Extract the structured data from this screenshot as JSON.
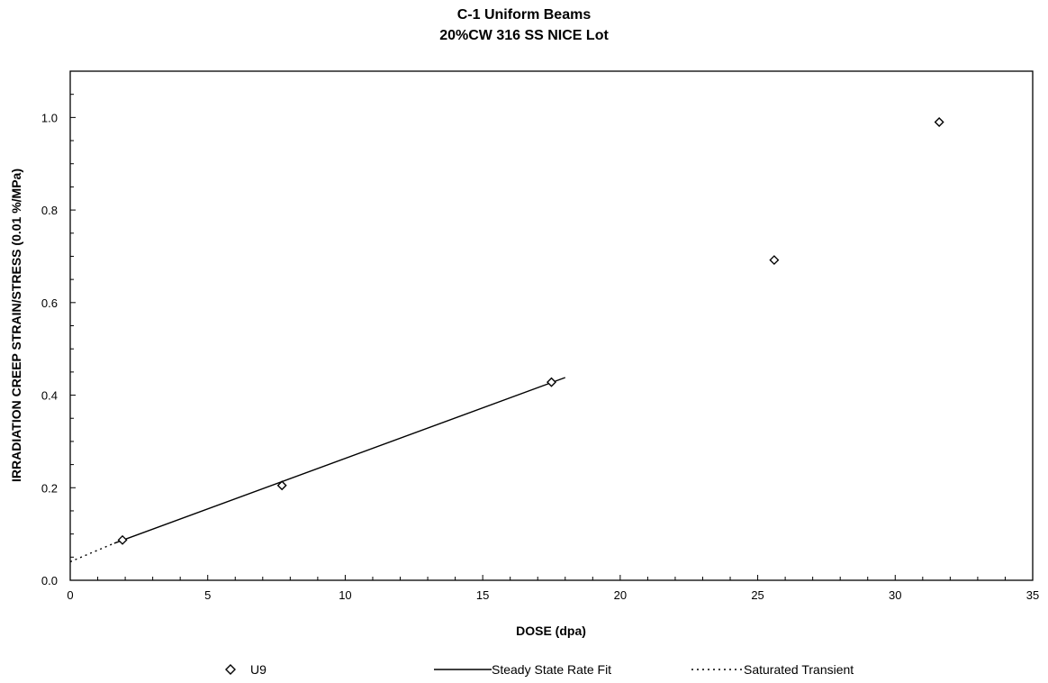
{
  "chart_data": {
    "type": "scatter",
    "title": "C-1 Uniform Beams",
    "subtitle": "20%CW 316 SS NICE Lot",
    "xlabel": "DOSE (dpa)",
    "ylabel": "IRRADIATION CREEP STRAIN/STRESS (0.01 %/MPa)",
    "xlim": [
      0,
      35
    ],
    "ylim": [
      0,
      1.1
    ],
    "xticks": [
      0,
      5,
      10,
      15,
      20,
      25,
      30,
      35
    ],
    "xtick_labels": [
      "0",
      "5",
      "10",
      "15",
      "20",
      "25",
      "30",
      "35"
    ],
    "yticks": [
      0.0,
      0.2,
      0.4,
      0.6,
      0.8,
      1.0
    ],
    "ytick_labels": [
      "0.0",
      "0.2",
      "0.4",
      "0.6",
      "0.8",
      "1.0"
    ],
    "grid": false,
    "legend_position": "bottom",
    "series": [
      {
        "name": "U9",
        "kind": "scatter",
        "marker": "diamond-open",
        "x": [
          1.9,
          7.7,
          17.5,
          25.6,
          31.6
        ],
        "y": [
          0.087,
          0.205,
          0.428,
          0.692,
          0.99
        ]
      },
      {
        "name": "Steady State Rate Fit",
        "kind": "line",
        "style": "solid",
        "x": [
          1.6,
          18.0
        ],
        "y": [
          0.08,
          0.438
        ]
      },
      {
        "name": "Saturated Transient",
        "kind": "line",
        "style": "dotted",
        "x": [
          0,
          1.6
        ],
        "y": [
          0.04,
          0.08
        ]
      }
    ],
    "colors": {
      "ink": "#000000",
      "background": "#ffffff"
    }
  }
}
